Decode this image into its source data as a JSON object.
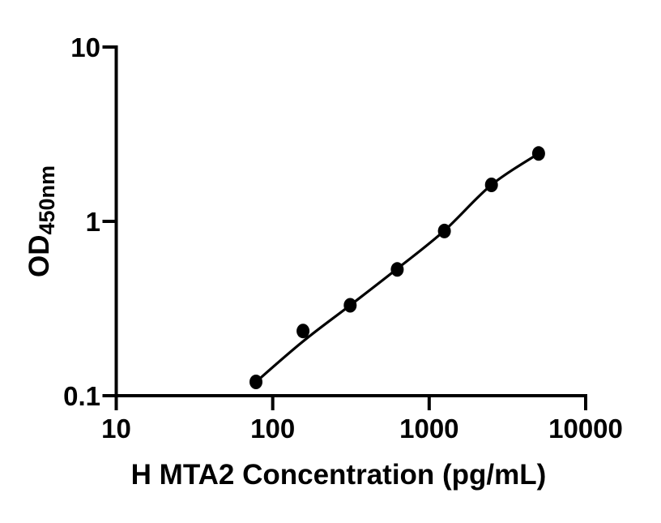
{
  "figure": {
    "background_color": "#ffffff",
    "foreground_color": "#000000"
  },
  "chart_data": {
    "type": "scatter",
    "title": "",
    "xlabel": "H MTA2 Concentration (pg/mL)",
    "ylabel_main": "OD",
    "ylabel_sub": "450nm",
    "x_scale": "log",
    "y_scale": "log",
    "xlim": [
      10,
      10000
    ],
    "ylim": [
      0.1,
      10
    ],
    "x_ticks": [
      10,
      100,
      1000,
      10000
    ],
    "x_tick_labels": [
      "10",
      "100",
      "1000",
      "10000"
    ],
    "y_ticks": [
      10,
      1,
      0.1
    ],
    "y_tick_labels": [
      "10",
      "1",
      "0.1"
    ],
    "grid": false,
    "legend": null,
    "axis_color": "#000000",
    "series": [
      {
        "name": "standard-points",
        "kind": "scatter",
        "marker": "filled-circle",
        "color": "#000000",
        "points": [
          {
            "x": 78.125,
            "y": 0.12
          },
          {
            "x": 156.25,
            "y": 0.235
          },
          {
            "x": 312.5,
            "y": 0.33
          },
          {
            "x": 625,
            "y": 0.53
          },
          {
            "x": 1250,
            "y": 0.88
          },
          {
            "x": 2500,
            "y": 1.62
          },
          {
            "x": 5000,
            "y": 2.45
          }
        ]
      },
      {
        "name": "fit-line",
        "kind": "line",
        "color": "#000000",
        "points": [
          {
            "x": 78.125,
            "y": 0.12
          },
          {
            "x": 156.25,
            "y": 0.205
          },
          {
            "x": 312.5,
            "y": 0.33
          },
          {
            "x": 625,
            "y": 0.535
          },
          {
            "x": 1250,
            "y": 0.885
          },
          {
            "x": 2500,
            "y": 1.62
          },
          {
            "x": 5000,
            "y": 2.45
          }
        ]
      }
    ]
  }
}
